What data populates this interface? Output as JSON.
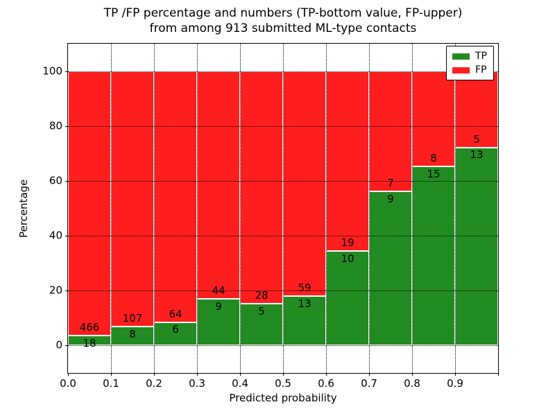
{
  "title": {
    "line1": "TP /FP percentage and numbers (TP-bottom value, FP-upper)",
    "line2": "from among 913 submitted ML-type contacts"
  },
  "chart_data": {
    "type": "bar",
    "stacked": true,
    "normalized_to_percent": 100,
    "total_contacts": 913,
    "x_bins": [
      "0.0-0.1",
      "0.1-0.2",
      "0.2-0.3",
      "0.3-0.4",
      "0.4-0.5",
      "0.5-0.6",
      "0.6-0.7",
      "0.7-0.8",
      "0.8-0.9",
      "0.9-1.0"
    ],
    "series": [
      {
        "name": "TP",
        "color": "#228b22",
        "counts": [
          18,
          8,
          6,
          9,
          5,
          13,
          10,
          9,
          15,
          13
        ]
      },
      {
        "name": "FP",
        "color": "#ff1e1e",
        "counts": [
          466,
          107,
          64,
          44,
          28,
          59,
          19,
          7,
          8,
          5
        ]
      }
    ],
    "xlabel": "Predicted probability",
    "ylabel": "Percentage",
    "x_tick_labels": [
      "0.0",
      "0.1",
      "0.2",
      "0.3",
      "0.4",
      "0.5",
      "0.6",
      "0.7",
      "0.8",
      "0.9",
      ""
    ],
    "y_ticks": [
      0,
      20,
      40,
      60,
      80,
      100
    ],
    "y_tick_labels": [
      "0",
      "20",
      "40",
      "60",
      "80",
      "100"
    ],
    "xlim": [
      0.0,
      1.0
    ],
    "ylim": [
      -10,
      110
    ],
    "grid": "dotted-black-both-axes",
    "bar_edge_color": "#ffffff",
    "legend": {
      "position": "upper right",
      "entries": [
        {
          "label": "TP",
          "color": "#228b22"
        },
        {
          "label": "FP",
          "color": "#ff1e1e"
        }
      ]
    }
  }
}
